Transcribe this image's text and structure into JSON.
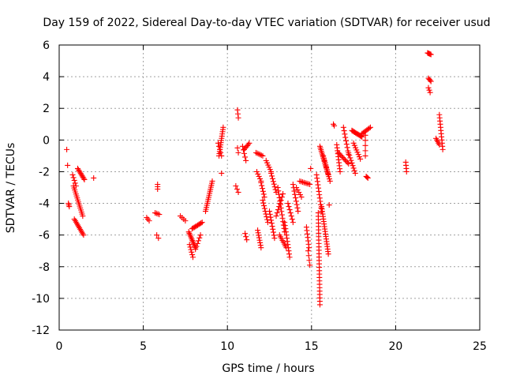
{
  "chart_data": {
    "type": "scatter",
    "title": "Day 159 of 2022, Sidereal Day-to-day VTEC variation (SDTVAR) for receiver usud",
    "xlabel": "GPS time / hours",
    "ylabel": "SDTVAR / TECUs",
    "xlim": [
      0,
      25
    ],
    "ylim": [
      -12,
      6
    ],
    "xticks": [
      0,
      5,
      10,
      15,
      20,
      25
    ],
    "yticks": [
      -12,
      -10,
      -8,
      -6,
      -4,
      -2,
      0,
      2,
      4,
      6
    ],
    "x_tick_labels": [
      "0",
      "5",
      "10",
      "15",
      "20",
      "25"
    ],
    "y_tick_labels": [
      "-12",
      "-10",
      "-8",
      "-6",
      "-4",
      "-2",
      "0",
      "2",
      "4",
      "6"
    ],
    "grid": true,
    "marker": "plus",
    "series_color": "#ff0000",
    "segments": [
      {
        "x0": 0.45,
        "y0": -0.6,
        "x1": 0.45,
        "y1": -0.6,
        "n": 1
      },
      {
        "x0": 0.5,
        "y0": -1.6,
        "x1": 0.5,
        "y1": -1.6,
        "n": 1
      },
      {
        "x0": 0.55,
        "y0": -4.0,
        "x1": 0.6,
        "y1": -4.2,
        "n": 3
      },
      {
        "x0": 0.8,
        "y0": -2.2,
        "x1": 1.0,
        "y1": -2.9,
        "n": 5
      },
      {
        "x0": 0.85,
        "y0": -2.9,
        "x1": 1.4,
        "y1": -4.8,
        "n": 16
      },
      {
        "x0": 0.9,
        "y0": -5.0,
        "x1": 1.45,
        "y1": -6.0,
        "n": 12
      },
      {
        "x0": 1.1,
        "y0": -1.8,
        "x1": 1.5,
        "y1": -2.5,
        "n": 10
      },
      {
        "x0": 2.05,
        "y0": -2.4,
        "x1": 2.05,
        "y1": -2.4,
        "n": 1
      },
      {
        "x0": 5.2,
        "y0": -4.9,
        "x1": 5.35,
        "y1": -5.1,
        "n": 3
      },
      {
        "x0": 5.7,
        "y0": -4.6,
        "x1": 5.95,
        "y1": -4.7,
        "n": 4
      },
      {
        "x0": 5.85,
        "y0": -2.8,
        "x1": 5.85,
        "y1": -3.1,
        "n": 3
      },
      {
        "x0": 5.8,
        "y0": -6.0,
        "x1": 5.9,
        "y1": -6.2,
        "n": 2
      },
      {
        "x0": 7.2,
        "y0": -4.8,
        "x1": 7.5,
        "y1": -5.1,
        "n": 4
      },
      {
        "x0": 7.7,
        "y0": -5.8,
        "x1": 8.1,
        "y1": -6.8,
        "n": 12
      },
      {
        "x0": 7.75,
        "y0": -6.6,
        "x1": 7.95,
        "y1": -7.4,
        "n": 6
      },
      {
        "x0": 7.9,
        "y0": -5.6,
        "x1": 8.5,
        "y1": -5.2,
        "n": 10
      },
      {
        "x0": 8.1,
        "y0": -6.9,
        "x1": 8.4,
        "y1": -6.0,
        "n": 6
      },
      {
        "x0": 8.7,
        "y0": -4.5,
        "x1": 9.1,
        "y1": -2.6,
        "n": 16
      },
      {
        "x0": 9.5,
        "y0": -1.0,
        "x1": 9.75,
        "y1": 0.8,
        "n": 14
      },
      {
        "x0": 9.45,
        "y0": -0.2,
        "x1": 9.65,
        "y1": -1.0,
        "n": 5
      },
      {
        "x0": 9.65,
        "y0": -2.1,
        "x1": 9.65,
        "y1": -2.1,
        "n": 1
      },
      {
        "x0": 10.6,
        "y0": 1.9,
        "x1": 10.65,
        "y1": 1.4,
        "n": 3
      },
      {
        "x0": 10.6,
        "y0": -0.5,
        "x1": 10.65,
        "y1": -0.8,
        "n": 2
      },
      {
        "x0": 10.5,
        "y0": -2.9,
        "x1": 10.65,
        "y1": -3.3,
        "n": 3
      },
      {
        "x0": 10.9,
        "y0": -0.4,
        "x1": 11.1,
        "y1": -1.3,
        "n": 5
      },
      {
        "x0": 11.0,
        "y0": -0.6,
        "x1": 11.3,
        "y1": -0.2,
        "n": 6
      },
      {
        "x0": 11.05,
        "y0": -5.9,
        "x1": 11.15,
        "y1": -6.3,
        "n": 3
      },
      {
        "x0": 11.7,
        "y0": -0.8,
        "x1": 12.1,
        "y1": -1.0,
        "n": 6
      },
      {
        "x0": 11.75,
        "y0": -2.0,
        "x1": 12.0,
        "y1": -2.6,
        "n": 5
      },
      {
        "x0": 11.8,
        "y0": -5.7,
        "x1": 12.0,
        "y1": -6.8,
        "n": 8
      },
      {
        "x0": 12.0,
        "y0": -2.7,
        "x1": 12.2,
        "y1": -3.6,
        "n": 6
      },
      {
        "x0": 12.1,
        "y0": -3.8,
        "x1": 12.4,
        "y1": -5.2,
        "n": 9
      },
      {
        "x0": 12.3,
        "y0": -1.3,
        "x1": 12.6,
        "y1": -2.0,
        "n": 6
      },
      {
        "x0": 12.5,
        "y0": -4.5,
        "x1": 12.8,
        "y1": -6.2,
        "n": 10
      },
      {
        "x0": 12.6,
        "y0": -2.1,
        "x1": 12.9,
        "y1": -3.3,
        "n": 8
      },
      {
        "x0": 12.9,
        "y0": -4.8,
        "x1": 13.3,
        "y1": -3.4,
        "n": 8
      },
      {
        "x0": 13.0,
        "y0": -3.0,
        "x1": 13.4,
        "y1": -5.8,
        "n": 14
      },
      {
        "x0": 13.1,
        "y0": -6.0,
        "x1": 13.5,
        "y1": -6.8,
        "n": 8
      },
      {
        "x0": 13.4,
        "y0": -5.2,
        "x1": 13.7,
        "y1": -7.4,
        "n": 12
      },
      {
        "x0": 13.6,
        "y0": -4.0,
        "x1": 13.9,
        "y1": -5.2,
        "n": 7
      },
      {
        "x0": 13.9,
        "y0": -2.8,
        "x1": 14.2,
        "y1": -4.5,
        "n": 9
      },
      {
        "x0": 14.1,
        "y0": -3.0,
        "x1": 14.4,
        "y1": -3.6,
        "n": 5
      },
      {
        "x0": 14.3,
        "y0": -2.6,
        "x1": 14.9,
        "y1": -2.8,
        "n": 8
      },
      {
        "x0": 14.7,
        "y0": -5.5,
        "x1": 14.85,
        "y1": -6.8,
        "n": 7
      },
      {
        "x0": 14.8,
        "y0": -7.0,
        "x1": 14.9,
        "y1": -7.9,
        "n": 4
      },
      {
        "x0": 14.95,
        "y0": -1.8,
        "x1": 14.95,
        "y1": -1.8,
        "n": 1
      },
      {
        "x0": 15.3,
        "y0": -2.2,
        "x1": 15.6,
        "y1": -4.5,
        "n": 12
      },
      {
        "x0": 15.4,
        "y0": -4.6,
        "x1": 15.5,
        "y1": -10.4,
        "n": 28
      },
      {
        "x0": 15.5,
        "y0": -0.4,
        "x1": 16.0,
        "y1": -2.2,
        "n": 18
      },
      {
        "x0": 15.6,
        "y0": -4.2,
        "x1": 16.0,
        "y1": -7.2,
        "n": 20
      },
      {
        "x0": 15.7,
        "y0": -1.0,
        "x1": 16.1,
        "y1": -2.6,
        "n": 12
      },
      {
        "x0": 16.05,
        "y0": -4.1,
        "x1": 16.05,
        "y1": -4.1,
        "n": 1
      },
      {
        "x0": 16.3,
        "y0": 1.0,
        "x1": 16.35,
        "y1": 0.9,
        "n": 2
      },
      {
        "x0": 16.5,
        "y0": -0.3,
        "x1": 16.7,
        "y1": -2.0,
        "n": 10
      },
      {
        "x0": 16.6,
        "y0": -0.8,
        "x1": 17.2,
        "y1": -1.5,
        "n": 10
      },
      {
        "x0": 16.9,
        "y0": 0.8,
        "x1": 17.2,
        "y1": -0.9,
        "n": 9
      },
      {
        "x0": 17.2,
        "y0": -0.8,
        "x1": 17.6,
        "y1": -2.1,
        "n": 9
      },
      {
        "x0": 17.4,
        "y0": 0.6,
        "x1": 18.0,
        "y1": 0.2,
        "n": 12
      },
      {
        "x0": 17.5,
        "y0": -0.2,
        "x1": 17.9,
        "y1": -1.2,
        "n": 8
      },
      {
        "x0": 18.0,
        "y0": 0.4,
        "x1": 18.5,
        "y1": 0.8,
        "n": 8
      },
      {
        "x0": 18.2,
        "y0": 0.3,
        "x1": 18.2,
        "y1": -1.0,
        "n": 5
      },
      {
        "x0": 18.25,
        "y0": -2.3,
        "x1": 18.35,
        "y1": -2.4,
        "n": 3
      },
      {
        "x0": 20.6,
        "y0": -1.4,
        "x1": 20.65,
        "y1": -2.0,
        "n": 4
      },
      {
        "x0": 21.9,
        "y0": 5.5,
        "x1": 22.1,
        "y1": 5.4,
        "n": 5
      },
      {
        "x0": 21.95,
        "y0": 3.9,
        "x1": 22.1,
        "y1": 3.7,
        "n": 4
      },
      {
        "x0": 21.95,
        "y0": 3.3,
        "x1": 22.05,
        "y1": 3.0,
        "n": 3
      },
      {
        "x0": 22.4,
        "y0": 0.1,
        "x1": 22.6,
        "y1": -0.3,
        "n": 5
      },
      {
        "x0": 22.6,
        "y0": 1.6,
        "x1": 22.8,
        "y1": -0.6,
        "n": 12
      }
    ]
  }
}
